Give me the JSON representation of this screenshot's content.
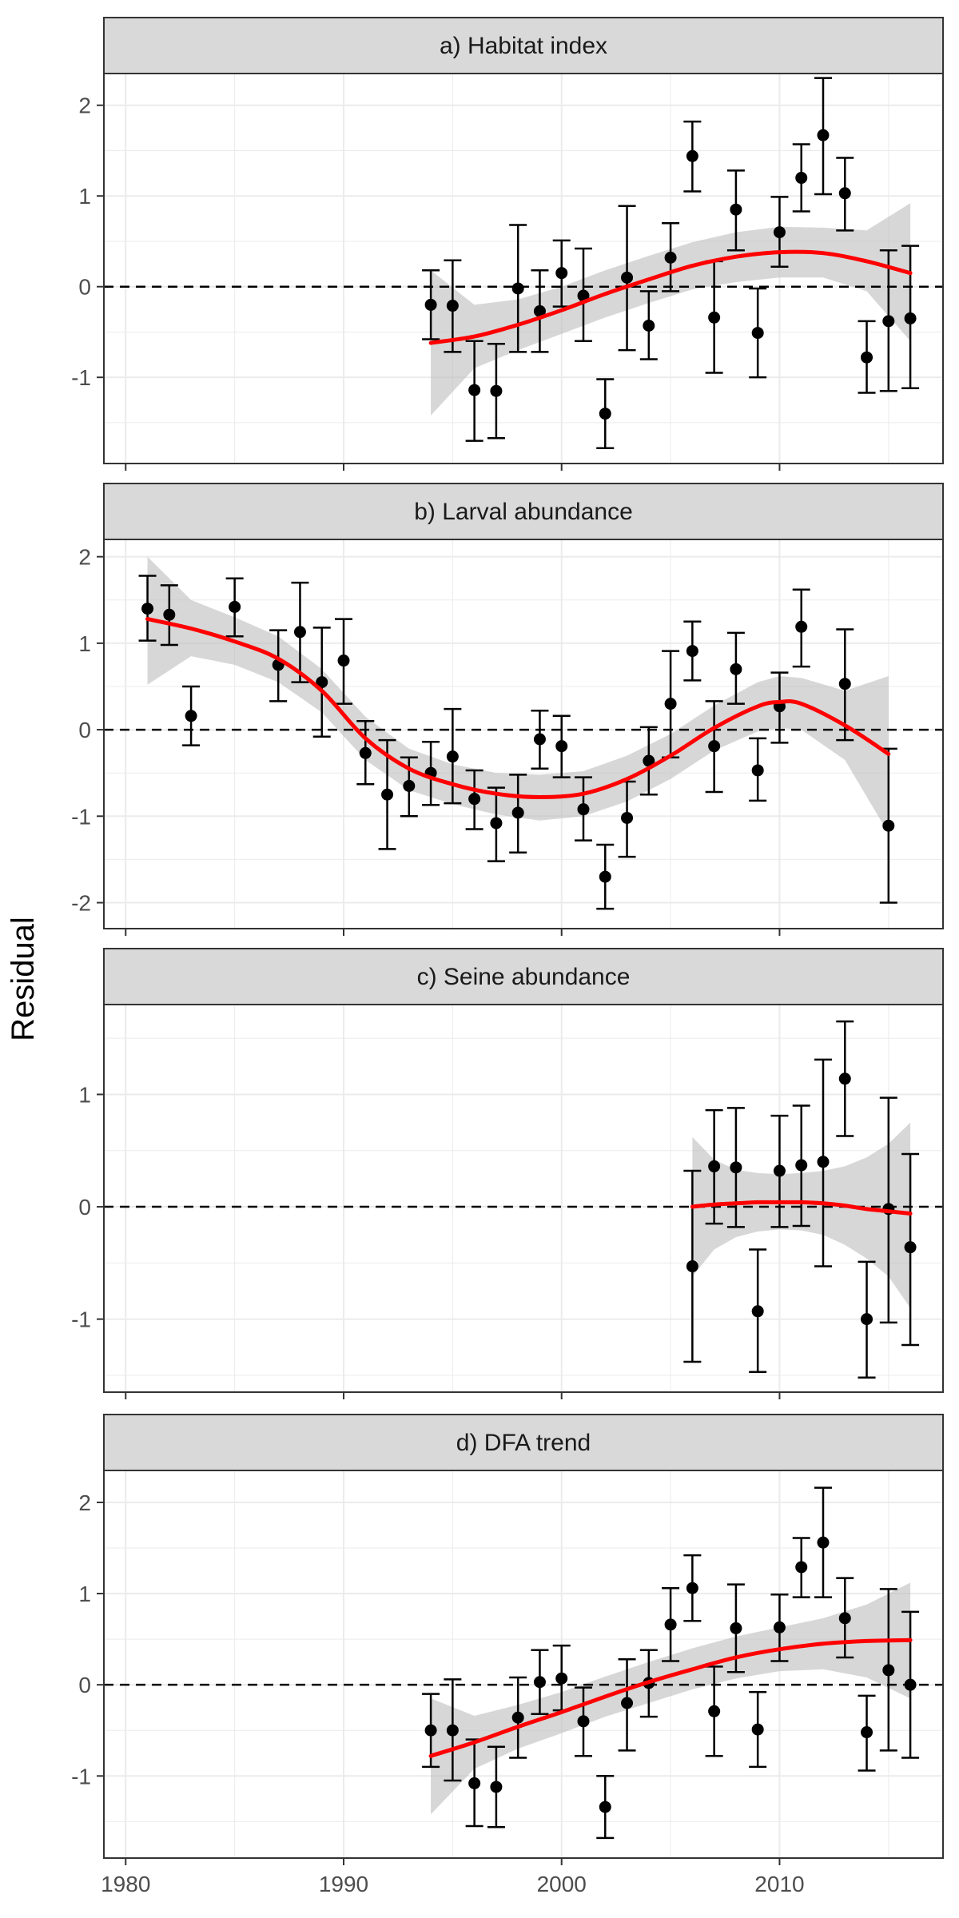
{
  "figure": {
    "ylabel": "Residual",
    "x_ticks": [
      1980,
      1990,
      2000,
      2010
    ],
    "xlim": [
      1979,
      2017.5
    ],
    "colors": {
      "background": "#ffffff",
      "grid_major": "#ebebeb",
      "strip_fill": "#d9d9d9",
      "panel_border": "#333333",
      "points": "#000000",
      "smooth_line": "#ff0000",
      "ribbon": "#bfbfbf",
      "zero_line": "#000000"
    }
  },
  "chart_data": [
    {
      "type": "scatter",
      "title": "a) Habitat index",
      "ylim": [
        -1.95,
        2.35
      ],
      "y_ticks": [
        -1,
        0,
        1,
        2
      ],
      "grid": true,
      "points": [
        {
          "x": 1994,
          "y": -0.2,
          "lo": -0.58,
          "hi": 0.18
        },
        {
          "x": 1995,
          "y": -0.21,
          "lo": -0.72,
          "hi": 0.29
        },
        {
          "x": 1996,
          "y": -1.14,
          "lo": -1.7,
          "hi": -0.6
        },
        {
          "x": 1997,
          "y": -1.15,
          "lo": -1.67,
          "hi": -0.63
        },
        {
          "x": 1998,
          "y": -0.02,
          "lo": -0.72,
          "hi": 0.68
        },
        {
          "x": 1999,
          "y": -0.27,
          "lo": -0.72,
          "hi": 0.18
        },
        {
          "x": 2000,
          "y": 0.15,
          "lo": -0.22,
          "hi": 0.51
        },
        {
          "x": 2001,
          "y": -0.1,
          "lo": -0.6,
          "hi": 0.42
        },
        {
          "x": 2002,
          "y": -1.4,
          "lo": -1.78,
          "hi": -1.02
        },
        {
          "x": 2003,
          "y": 0.1,
          "lo": -0.7,
          "hi": 0.89
        },
        {
          "x": 2004,
          "y": -0.43,
          "lo": -0.8,
          "hi": -0.05
        },
        {
          "x": 2005,
          "y": 0.32,
          "lo": -0.05,
          "hi": 0.7
        },
        {
          "x": 2006,
          "y": 1.44,
          "lo": 1.05,
          "hi": 1.82
        },
        {
          "x": 2007,
          "y": -0.34,
          "lo": -0.95,
          "hi": 0.28
        },
        {
          "x": 2008,
          "y": 0.85,
          "lo": 0.4,
          "hi": 1.28
        },
        {
          "x": 2009,
          "y": -0.51,
          "lo": -1.0,
          "hi": -0.02
        },
        {
          "x": 2010,
          "y": 0.6,
          "lo": 0.22,
          "hi": 0.99
        },
        {
          "x": 2011,
          "y": 1.2,
          "lo": 0.83,
          "hi": 1.57
        },
        {
          "x": 2012,
          "y": 1.67,
          "lo": 1.02,
          "hi": 2.3
        },
        {
          "x": 2013,
          "y": 1.03,
          "lo": 0.62,
          "hi": 1.42
        },
        {
          "x": 2014,
          "y": -0.78,
          "lo": -1.17,
          "hi": -0.38
        },
        {
          "x": 2015,
          "y": -0.38,
          "lo": -1.15,
          "hi": 0.4
        },
        {
          "x": 2016,
          "y": -0.35,
          "lo": -1.12,
          "hi": 0.45
        }
      ],
      "smooth": [
        {
          "x": 1994,
          "y": -0.62,
          "lo": -1.42,
          "hi": 0.18
        },
        {
          "x": 1996,
          "y": -0.55,
          "lo": -0.9,
          "hi": -0.2
        },
        {
          "x": 1998,
          "y": -0.42,
          "lo": -0.7,
          "hi": -0.14
        },
        {
          "x": 2000,
          "y": -0.26,
          "lo": -0.52,
          "hi": 0.0
        },
        {
          "x": 2002,
          "y": -0.08,
          "lo": -0.34,
          "hi": 0.18
        },
        {
          "x": 2004,
          "y": 0.08,
          "lo": -0.18,
          "hi": 0.34
        },
        {
          "x": 2006,
          "y": 0.23,
          "lo": -0.03,
          "hi": 0.49
        },
        {
          "x": 2008,
          "y": 0.33,
          "lo": 0.05,
          "hi": 0.6
        },
        {
          "x": 2010,
          "y": 0.38,
          "lo": 0.1,
          "hi": 0.66
        },
        {
          "x": 2012,
          "y": 0.37,
          "lo": 0.1,
          "hi": 0.65
        },
        {
          "x": 2014,
          "y": 0.28,
          "lo": -0.05,
          "hi": 0.62
        },
        {
          "x": 2016,
          "y": 0.15,
          "lo": -0.6,
          "hi": 0.92
        }
      ]
    },
    {
      "type": "scatter",
      "title": "b) Larval abundance",
      "ylim": [
        -2.3,
        2.2
      ],
      "y_ticks": [
        -2,
        -1,
        0,
        1,
        2
      ],
      "grid": true,
      "points": [
        {
          "x": 1981,
          "y": 1.4,
          "lo": 1.03,
          "hi": 1.78
        },
        {
          "x": 1982,
          "y": 1.33,
          "lo": 0.98,
          "hi": 1.67
        },
        {
          "x": 1983,
          "y": 0.16,
          "lo": -0.18,
          "hi": 0.5
        },
        {
          "x": 1985,
          "y": 1.42,
          "lo": 1.08,
          "hi": 1.75
        },
        {
          "x": 1987,
          "y": 0.75,
          "lo": 0.33,
          "hi": 1.15
        },
        {
          "x": 1988,
          "y": 1.13,
          "lo": 0.55,
          "hi": 1.7
        },
        {
          "x": 1989,
          "y": 0.55,
          "lo": -0.08,
          "hi": 1.18
        },
        {
          "x": 1990,
          "y": 0.8,
          "lo": 0.3,
          "hi": 1.28
        },
        {
          "x": 1991,
          "y": -0.27,
          "lo": -0.63,
          "hi": 0.1
        },
        {
          "x": 1992,
          "y": -0.75,
          "lo": -1.38,
          "hi": -0.12
        },
        {
          "x": 1993,
          "y": -0.65,
          "lo": -1.0,
          "hi": -0.32
        },
        {
          "x": 1994,
          "y": -0.5,
          "lo": -0.87,
          "hi": -0.14
        },
        {
          "x": 1995,
          "y": -0.31,
          "lo": -0.85,
          "hi": 0.24
        },
        {
          "x": 1996,
          "y": -0.8,
          "lo": -1.15,
          "hi": -0.47
        },
        {
          "x": 1997,
          "y": -1.08,
          "lo": -1.52,
          "hi": -0.67
        },
        {
          "x": 1998,
          "y": -0.96,
          "lo": -1.42,
          "hi": -0.52
        },
        {
          "x": 1999,
          "y": -0.11,
          "lo": -0.45,
          "hi": 0.22
        },
        {
          "x": 2000,
          "y": -0.19,
          "lo": -0.55,
          "hi": 0.16
        },
        {
          "x": 2001,
          "y": -0.92,
          "lo": -1.28,
          "hi": -0.55
        },
        {
          "x": 2002,
          "y": -1.7,
          "lo": -2.07,
          "hi": -1.33
        },
        {
          "x": 2003,
          "y": -1.02,
          "lo": -1.47,
          "hi": -0.6
        },
        {
          "x": 2004,
          "y": -0.36,
          "lo": -0.75,
          "hi": 0.03
        },
        {
          "x": 2005,
          "y": 0.3,
          "lo": -0.32,
          "hi": 0.91
        },
        {
          "x": 2006,
          "y": 0.91,
          "lo": 0.57,
          "hi": 1.25
        },
        {
          "x": 2007,
          "y": -0.19,
          "lo": -0.72,
          "hi": 0.33
        },
        {
          "x": 2008,
          "y": 0.7,
          "lo": 0.3,
          "hi": 1.12
        },
        {
          "x": 2009,
          "y": -0.47,
          "lo": -0.82,
          "hi": -0.1
        },
        {
          "x": 2010,
          "y": 0.27,
          "lo": -0.15,
          "hi": 0.66
        },
        {
          "x": 2011,
          "y": 1.19,
          "lo": 0.73,
          "hi": 1.62
        },
        {
          "x": 2013,
          "y": 0.53,
          "lo": -0.12,
          "hi": 1.16
        },
        {
          "x": 2015,
          "y": -1.11,
          "lo": -2.0,
          "hi": -0.22
        }
      ],
      "smooth": [
        {
          "x": 1981,
          "y": 1.28,
          "lo": 0.52,
          "hi": 2.0
        },
        {
          "x": 1983,
          "y": 1.17,
          "lo": 0.85,
          "hi": 1.5
        },
        {
          "x": 1985,
          "y": 1.02,
          "lo": 0.75,
          "hi": 1.3
        },
        {
          "x": 1987,
          "y": 0.82,
          "lo": 0.55,
          "hi": 1.08
        },
        {
          "x": 1989,
          "y": 0.45,
          "lo": 0.2,
          "hi": 0.7
        },
        {
          "x": 1991,
          "y": -0.1,
          "lo": -0.35,
          "hi": 0.15
        },
        {
          "x": 1993,
          "y": -0.45,
          "lo": -0.7,
          "hi": -0.22
        },
        {
          "x": 1995,
          "y": -0.63,
          "lo": -0.86,
          "hi": -0.4
        },
        {
          "x": 1997,
          "y": -0.74,
          "lo": -0.98,
          "hi": -0.5
        },
        {
          "x": 1999,
          "y": -0.78,
          "lo": -1.05,
          "hi": -0.52
        },
        {
          "x": 2001,
          "y": -0.74,
          "lo": -1.0,
          "hi": -0.48
        },
        {
          "x": 2003,
          "y": -0.57,
          "lo": -0.83,
          "hi": -0.3
        },
        {
          "x": 2005,
          "y": -0.3,
          "lo": -0.57,
          "hi": -0.05
        },
        {
          "x": 2007,
          "y": 0.02,
          "lo": -0.24,
          "hi": 0.28
        },
        {
          "x": 2009,
          "y": 0.27,
          "lo": -0.02,
          "hi": 0.55
        },
        {
          "x": 2010,
          "y": 0.32,
          "lo": 0.02,
          "hi": 0.62
        },
        {
          "x": 2011,
          "y": 0.3,
          "lo": 0.0,
          "hi": 0.6
        },
        {
          "x": 2013,
          "y": 0.05,
          "lo": -0.35,
          "hi": 0.45
        },
        {
          "x": 2015,
          "y": -0.28,
          "lo": -1.2,
          "hi": 0.62
        }
      ]
    },
    {
      "type": "scatter",
      "title": "c) Seine abundance",
      "ylim": [
        -1.65,
        1.8
      ],
      "y_ticks": [
        -1,
        0,
        1
      ],
      "grid": true,
      "points": [
        {
          "x": 2006,
          "y": -0.53,
          "lo": -1.38,
          "hi": 0.32
        },
        {
          "x": 2007,
          "y": 0.36,
          "lo": -0.15,
          "hi": 0.86
        },
        {
          "x": 2008,
          "y": 0.35,
          "lo": -0.18,
          "hi": 0.88
        },
        {
          "x": 2009,
          "y": -0.93,
          "lo": -1.47,
          "hi": -0.38
        },
        {
          "x": 2010,
          "y": 0.32,
          "lo": -0.18,
          "hi": 0.81
        },
        {
          "x": 2011,
          "y": 0.37,
          "lo": -0.17,
          "hi": 0.9
        },
        {
          "x": 2012,
          "y": 0.4,
          "lo": -0.53,
          "hi": 1.31
        },
        {
          "x": 2013,
          "y": 1.14,
          "lo": 0.63,
          "hi": 1.65
        },
        {
          "x": 2014,
          "y": -1.0,
          "lo": -1.52,
          "hi": -0.49
        },
        {
          "x": 2015,
          "y": -0.02,
          "lo": -1.03,
          "hi": 0.97
        },
        {
          "x": 2016,
          "y": -0.36,
          "lo": -1.23,
          "hi": 0.47
        }
      ],
      "smooth": [
        {
          "x": 2006,
          "y": 0.0,
          "lo": -0.62,
          "hi": 0.62
        },
        {
          "x": 2007,
          "y": 0.02,
          "lo": -0.38,
          "hi": 0.42
        },
        {
          "x": 2008,
          "y": 0.03,
          "lo": -0.27,
          "hi": 0.33
        },
        {
          "x": 2009,
          "y": 0.04,
          "lo": -0.22,
          "hi": 0.3
        },
        {
          "x": 2010,
          "y": 0.04,
          "lo": -0.2,
          "hi": 0.29
        },
        {
          "x": 2011,
          "y": 0.04,
          "lo": -0.21,
          "hi": 0.3
        },
        {
          "x": 2012,
          "y": 0.03,
          "lo": -0.25,
          "hi": 0.32
        },
        {
          "x": 2013,
          "y": 0.01,
          "lo": -0.34,
          "hi": 0.36
        },
        {
          "x": 2014,
          "y": -0.02,
          "lo": -0.46,
          "hi": 0.44
        },
        {
          "x": 2015,
          "y": -0.04,
          "lo": -0.62,
          "hi": 0.56
        },
        {
          "x": 2016,
          "y": -0.06,
          "lo": -0.9,
          "hi": 0.75
        }
      ]
    },
    {
      "type": "scatter",
      "title": "d) DFA trend",
      "ylim": [
        -1.9,
        2.35
      ],
      "y_ticks": [
        -1,
        0,
        1,
        2
      ],
      "grid": true,
      "points": [
        {
          "x": 1994,
          "y": -0.5,
          "lo": -0.9,
          "hi": -0.1
        },
        {
          "x": 1995,
          "y": -0.5,
          "lo": -1.05,
          "hi": 0.06
        },
        {
          "x": 1996,
          "y": -1.08,
          "lo": -1.55,
          "hi": -0.6
        },
        {
          "x": 1997,
          "y": -1.12,
          "lo": -1.56,
          "hi": -0.68
        },
        {
          "x": 1998,
          "y": -0.36,
          "lo": -0.8,
          "hi": 0.08
        },
        {
          "x": 1999,
          "y": 0.03,
          "lo": -0.32,
          "hi": 0.38
        },
        {
          "x": 2000,
          "y": 0.07,
          "lo": -0.28,
          "hi": 0.43
        },
        {
          "x": 2001,
          "y": -0.4,
          "lo": -0.78,
          "hi": -0.03
        },
        {
          "x": 2002,
          "y": -1.34,
          "lo": -1.68,
          "hi": -1.0
        },
        {
          "x": 2003,
          "y": -0.2,
          "lo": -0.72,
          "hi": 0.28
        },
        {
          "x": 2004,
          "y": 0.02,
          "lo": -0.35,
          "hi": 0.38
        },
        {
          "x": 2005,
          "y": 0.66,
          "lo": 0.26,
          "hi": 1.06
        },
        {
          "x": 2006,
          "y": 1.06,
          "lo": 0.7,
          "hi": 1.42
        },
        {
          "x": 2007,
          "y": -0.29,
          "lo": -0.78,
          "hi": 0.2
        },
        {
          "x": 2008,
          "y": 0.62,
          "lo": 0.14,
          "hi": 1.1
        },
        {
          "x": 2009,
          "y": -0.49,
          "lo": -0.9,
          "hi": -0.08
        },
        {
          "x": 2010,
          "y": 0.63,
          "lo": 0.26,
          "hi": 0.99
        },
        {
          "x": 2011,
          "y": 1.29,
          "lo": 0.96,
          "hi": 1.61
        },
        {
          "x": 2012,
          "y": 1.56,
          "lo": 0.96,
          "hi": 2.16
        },
        {
          "x": 2013,
          "y": 0.73,
          "lo": 0.3,
          "hi": 1.17
        },
        {
          "x": 2014,
          "y": -0.52,
          "lo": -0.94,
          "hi": -0.12
        },
        {
          "x": 2015,
          "y": 0.16,
          "lo": -0.72,
          "hi": 1.05
        },
        {
          "x": 2016,
          "y": 0.0,
          "lo": -0.8,
          "hi": 0.8
        }
      ],
      "smooth": [
        {
          "x": 1994,
          "y": -0.78,
          "lo": -1.42,
          "hi": -0.15
        },
        {
          "x": 1996,
          "y": -0.63,
          "lo": -0.92,
          "hi": -0.34
        },
        {
          "x": 1998,
          "y": -0.46,
          "lo": -0.7,
          "hi": -0.22
        },
        {
          "x": 2000,
          "y": -0.3,
          "lo": -0.53,
          "hi": -0.08
        },
        {
          "x": 2002,
          "y": -0.13,
          "lo": -0.35,
          "hi": 0.09
        },
        {
          "x": 2004,
          "y": 0.03,
          "lo": -0.2,
          "hi": 0.25
        },
        {
          "x": 2006,
          "y": 0.17,
          "lo": -0.05,
          "hi": 0.4
        },
        {
          "x": 2008,
          "y": 0.3,
          "lo": 0.07,
          "hi": 0.53
        },
        {
          "x": 2010,
          "y": 0.39,
          "lo": 0.15,
          "hi": 0.63
        },
        {
          "x": 2012,
          "y": 0.45,
          "lo": 0.17,
          "hi": 0.73
        },
        {
          "x": 2014,
          "y": 0.48,
          "lo": 0.08,
          "hi": 0.88
        },
        {
          "x": 2016,
          "y": 0.49,
          "lo": -0.15,
          "hi": 1.12
        }
      ]
    }
  ]
}
